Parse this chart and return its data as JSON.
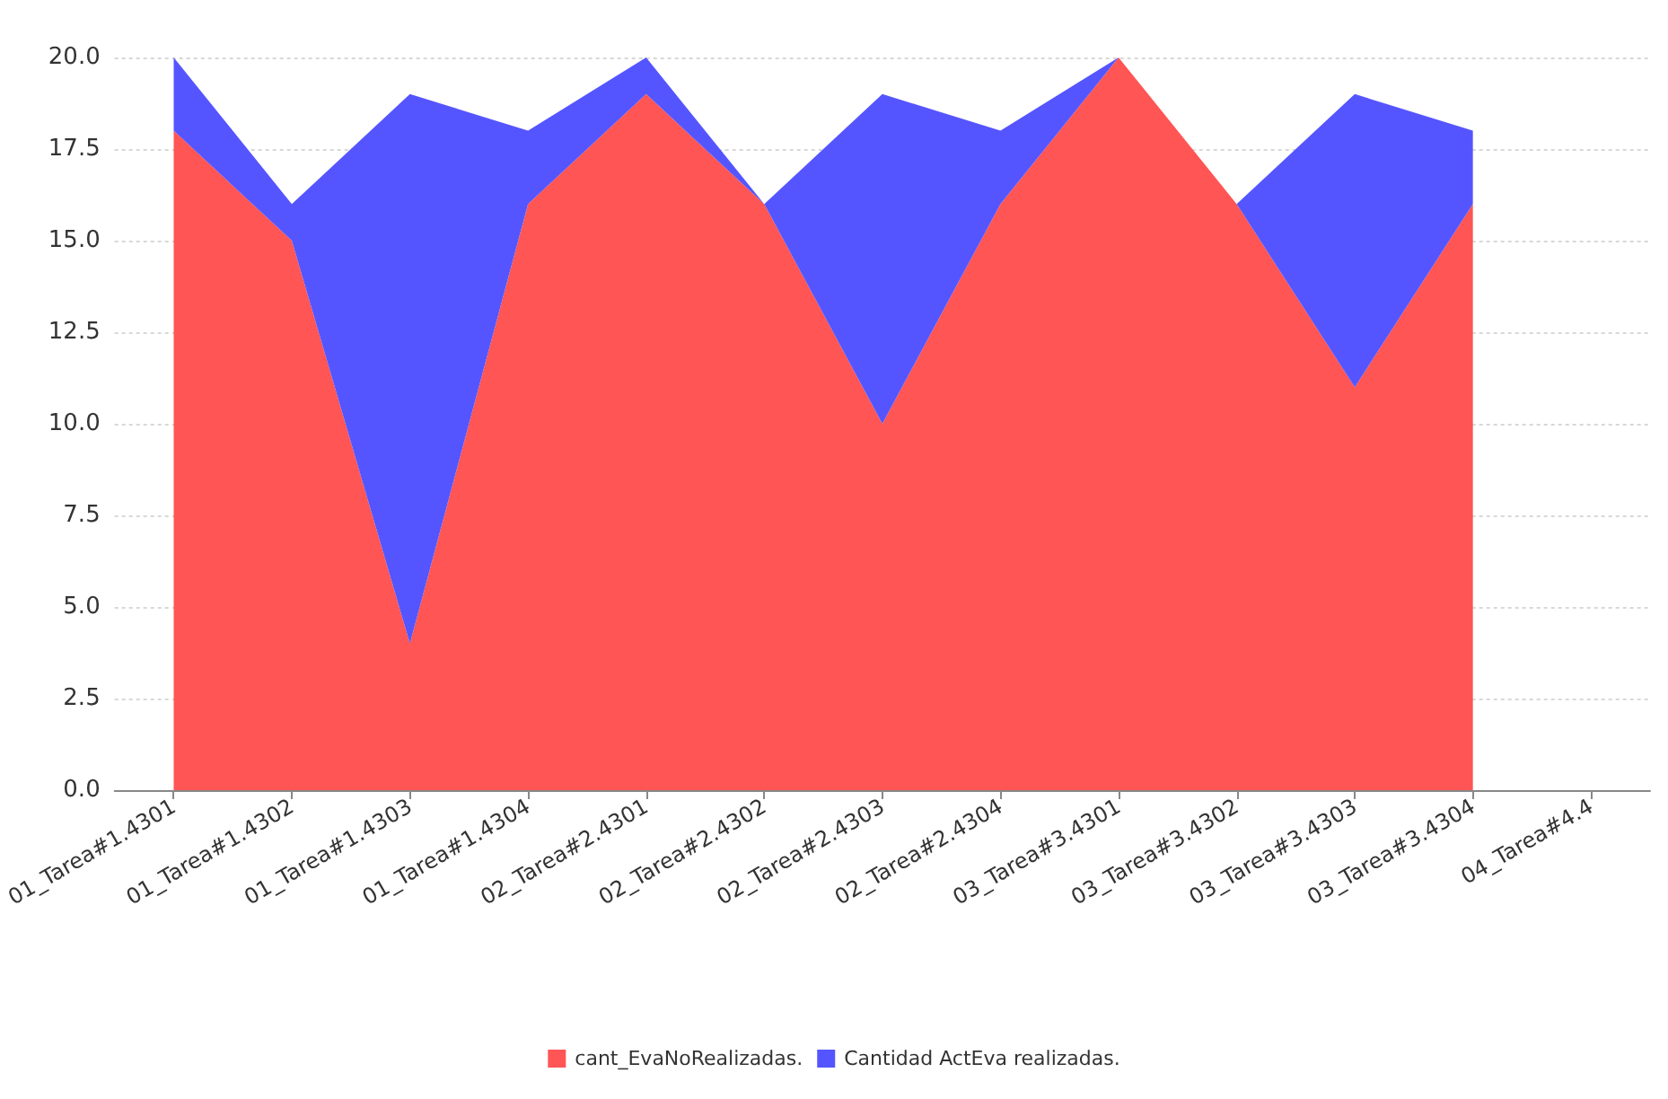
{
  "chart_data": {
    "type": "area",
    "stacked": true,
    "categories": [
      "01_Tarea#1.4301",
      "01_Tarea#1.4302",
      "01_Tarea#1.4303",
      "01_Tarea#1.4304",
      "02_Tarea#2.4301",
      "02_Tarea#2.4302",
      "02_Tarea#2.4303",
      "02_Tarea#2.4304",
      "03_Tarea#3.4301",
      "03_Tarea#3.4302",
      "03_Tarea#3.4303",
      "03_Tarea#3.4304",
      "04_Tarea#4.4"
    ],
    "series": [
      {
        "name": "cant_EvaNoRealizadas.",
        "color": "#ff5555",
        "values": [
          18,
          15,
          4,
          16,
          19,
          16,
          10,
          16,
          20,
          16,
          11,
          16,
          null
        ]
      },
      {
        "name": "Cantidad ActEva realizadas.",
        "color": "#5555ff",
        "values": [
          2,
          1,
          15,
          2,
          1,
          0,
          9,
          2,
          0,
          0,
          8,
          2,
          null
        ]
      }
    ],
    "ylim": [
      0,
      20
    ],
    "yticks": [
      {
        "value": 0,
        "label": "0.0"
      },
      {
        "value": 2.5,
        "label": "2.5"
      },
      {
        "value": 5,
        "label": "5.0"
      },
      {
        "value": 7.5,
        "label": "7.5"
      },
      {
        "value": 10,
        "label": "10.0"
      },
      {
        "value": 12.5,
        "label": "12.5"
      },
      {
        "value": 15,
        "label": "15.0"
      },
      {
        "value": 17.5,
        "label": "17.5"
      },
      {
        "value": 20,
        "label": "20.0"
      }
    ],
    "grid": "y",
    "legend": "bottom"
  }
}
